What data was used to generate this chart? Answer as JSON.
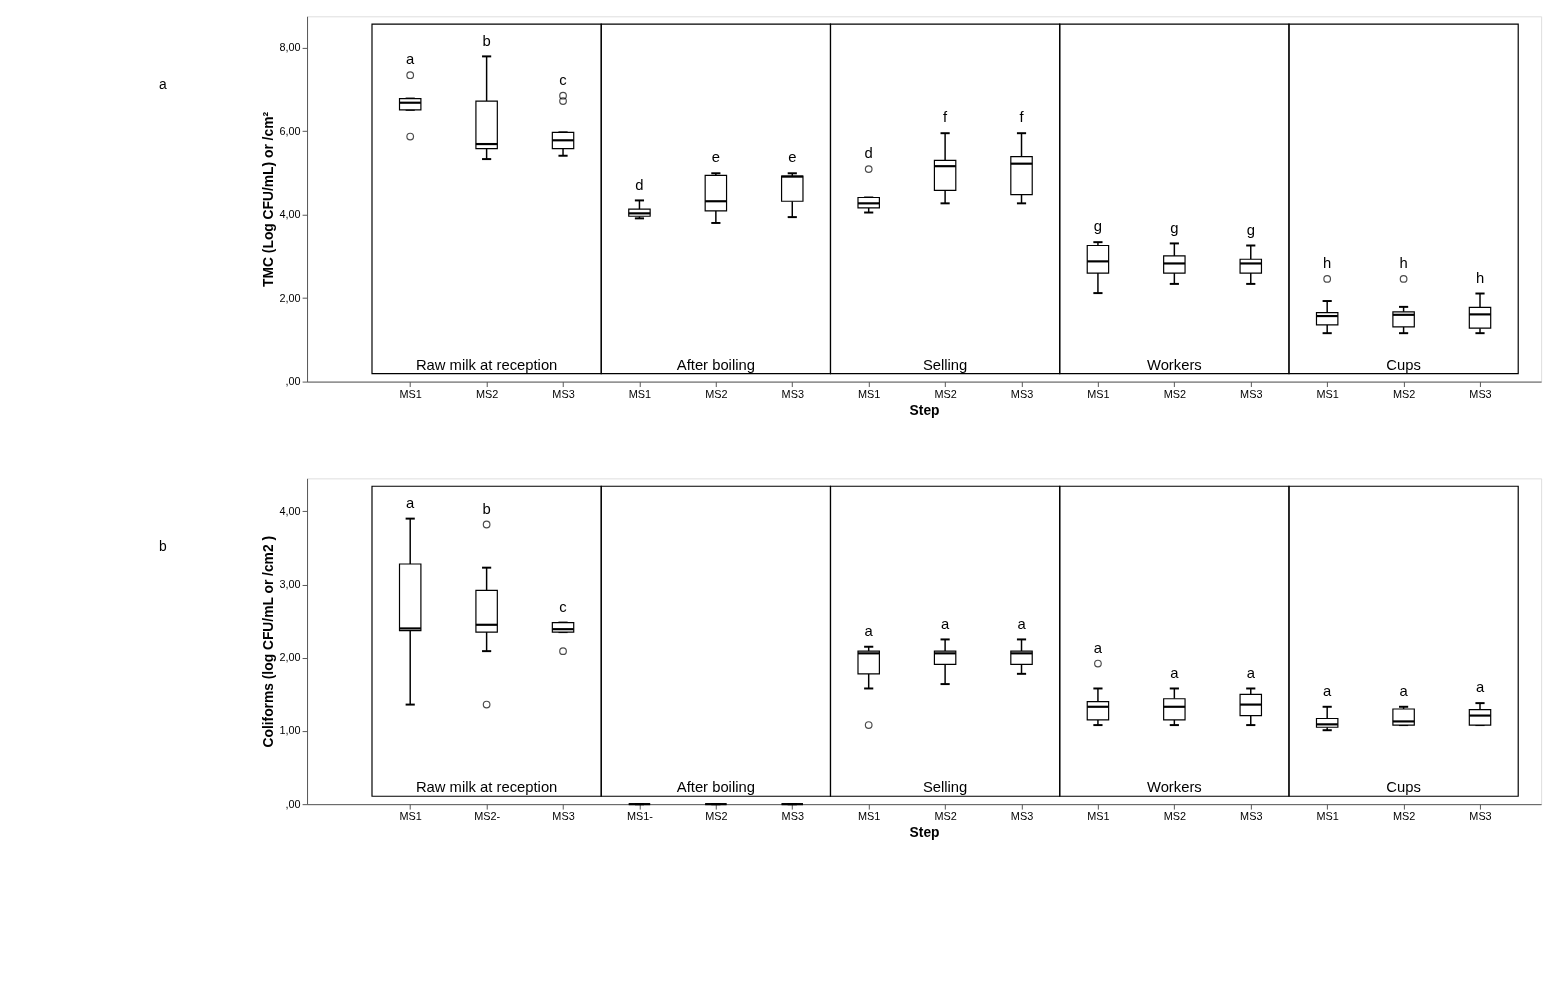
{
  "chart_data": [
    {
      "type": "box",
      "ylabel": "TMC (Log CFU/mL) or /cm²",
      "xlabel": "Step",
      "grid": false,
      "categories": [
        "MS1",
        "MS2",
        "MS3",
        "MS1",
        "MS2",
        "MS3",
        "MS1",
        "MS2",
        "MS3",
        "MS1",
        "MS2",
        "MS3",
        "MS1",
        "MS2",
        "MS3"
      ],
      "ylim": [
        0,
        8.75
      ],
      "yticks": [
        {
          "value": 0,
          "label": ",00"
        },
        {
          "value": 2,
          "label": "2,00"
        },
        {
          "value": 4,
          "label": "4,00"
        },
        {
          "value": 6,
          "label": "6,00"
        },
        {
          "value": 8,
          "label": "8,00"
        }
      ],
      "boxes": [
        {
          "low": 6.51,
          "q1": 6.51,
          "median": 6.68,
          "q3": 6.78,
          "high": 6.78,
          "outliers": [
            7.34,
            5.87
          ]
        },
        {
          "low": 5.33,
          "q1": 5.58,
          "median": 5.69,
          "q3": 6.72,
          "high": 7.79
        },
        {
          "low": 5.41,
          "q1": 5.58,
          "median": 5.78,
          "q3": 5.97,
          "high": 5.97,
          "outliers": [
            6.85,
            6.72
          ]
        },
        {
          "low": 3.91,
          "q1": 3.96,
          "median": 4.03,
          "q3": 4.13,
          "high": 4.34
        },
        {
          "low": 3.8,
          "q1": 4.09,
          "median": 4.32,
          "q3": 4.94,
          "high": 4.99
        },
        {
          "low": 3.94,
          "q1": 4.32,
          "median": 4.91,
          "q3": 4.92,
          "high": 4.99
        },
        {
          "low": 4.05,
          "q1": 4.16,
          "median": 4.27,
          "q3": 4.41,
          "high": 4.41,
          "outliers": [
            5.09
          ]
        },
        {
          "low": 4.27,
          "q1": 4.58,
          "median": 5.16,
          "q3": 5.3,
          "high": 5.95
        },
        {
          "low": 4.27,
          "q1": 4.48,
          "median": 5.22,
          "q3": 5.39,
          "high": 5.95
        },
        {
          "low": 2.12,
          "q1": 2.6,
          "median": 2.88,
          "q3": 3.26,
          "high": 3.34
        },
        {
          "low": 2.34,
          "q1": 2.6,
          "median": 2.83,
          "q3": 3.01,
          "high": 3.31
        },
        {
          "low": 2.34,
          "q1": 2.6,
          "median": 2.83,
          "q3": 2.93,
          "high": 3.26
        },
        {
          "low": 1.16,
          "q1": 1.36,
          "median": 1.57,
          "q3": 1.65,
          "high": 1.93,
          "outliers": [
            2.46
          ]
        },
        {
          "low": 1.16,
          "q1": 1.31,
          "median": 1.6,
          "q3": 1.67,
          "high": 1.79,
          "outliers": [
            2.46
          ]
        },
        {
          "low": 1.16,
          "q1": 1.28,
          "median": 1.61,
          "q3": 1.78,
          "high": 2.11
        }
      ],
      "annotations": [
        "a",
        "Raw milk at reception",
        "After boiling",
        "Selling",
        "Workers",
        "Cups",
        "a",
        "b",
        "c",
        "d",
        "e",
        "e",
        "d",
        "f",
        "f",
        "g",
        "g",
        "g",
        "h",
        "h",
        "h"
      ]
    },
    {
      "type": "box",
      "ylabel": "Coliforms (log CFU/mL or /cm2 )",
      "xlabel": "Step",
      "grid": false,
      "categories": [
        "MS1",
        "MS2-",
        "MS3",
        "MS1-",
        "MS2",
        "MS3",
        "MS1",
        "MS2",
        "MS3",
        "MS1",
        "MS2",
        "MS3",
        "MS1",
        "MS2",
        "MS3"
      ],
      "ylim": [
        0,
        4.45
      ],
      "yticks": [
        {
          "value": 0,
          "label": ",00"
        },
        {
          "value": 1,
          "label": "1,00"
        },
        {
          "value": 2,
          "label": "2,00"
        },
        {
          "value": 3,
          "label": "3,00"
        },
        {
          "value": 4,
          "label": "4,00"
        }
      ],
      "boxes": [
        {
          "low": 1.36,
          "q1": 2.37,
          "median": 2.4,
          "q3": 3.28,
          "high": 3.9
        },
        {
          "low": 2.09,
          "q1": 2.35,
          "median": 2.45,
          "q3": 2.92,
          "high": 3.23,
          "outliers": [
            3.82,
            1.36
          ]
        },
        {
          "low": 2.35,
          "q1": 2.35,
          "median": 2.39,
          "q3": 2.48,
          "high": 2.48,
          "outliers": [
            2.09
          ]
        },
        {
          "low": 0,
          "q1": 0,
          "median": 0,
          "q3": 0,
          "high": 0
        },
        {
          "low": 0,
          "q1": 0,
          "median": 0,
          "q3": 0,
          "high": 0
        },
        {
          "low": 0,
          "q1": 0,
          "median": 0,
          "q3": 0,
          "high": 0
        },
        {
          "low": 1.58,
          "q1": 1.78,
          "median": 2.06,
          "q3": 2.09,
          "high": 2.15,
          "outliers": [
            1.08
          ]
        },
        {
          "low": 1.64,
          "q1": 1.91,
          "median": 2.06,
          "q3": 2.09,
          "high": 2.25
        },
        {
          "low": 1.78,
          "q1": 1.91,
          "median": 2.06,
          "q3": 2.09,
          "high": 2.25
        },
        {
          "low": 1.08,
          "q1": 1.15,
          "median": 1.33,
          "q3": 1.4,
          "high": 1.58,
          "outliers": [
            1.92
          ]
        },
        {
          "low": 1.08,
          "q1": 1.15,
          "median": 1.33,
          "q3": 1.44,
          "high": 1.58
        },
        {
          "low": 1.08,
          "q1": 1.21,
          "median": 1.36,
          "q3": 1.5,
          "high": 1.58
        },
        {
          "low": 1.01,
          "q1": 1.05,
          "median": 1.09,
          "q3": 1.17,
          "high": 1.33
        },
        {
          "low": 1.08,
          "q1": 1.08,
          "median": 1.13,
          "q3": 1.3,
          "high": 1.33
        },
        {
          "low": 1.08,
          "q1": 1.08,
          "median": 1.21,
          "q3": 1.29,
          "high": 1.38
        }
      ],
      "annotations": [
        "b",
        "Raw milk at reception",
        "After boiling",
        "Selling",
        "Workers",
        "Cups",
        "a",
        "b",
        "c",
        "a",
        "a",
        "a",
        "a",
        "a",
        "a",
        "a",
        "a",
        "a"
      ]
    }
  ]
}
